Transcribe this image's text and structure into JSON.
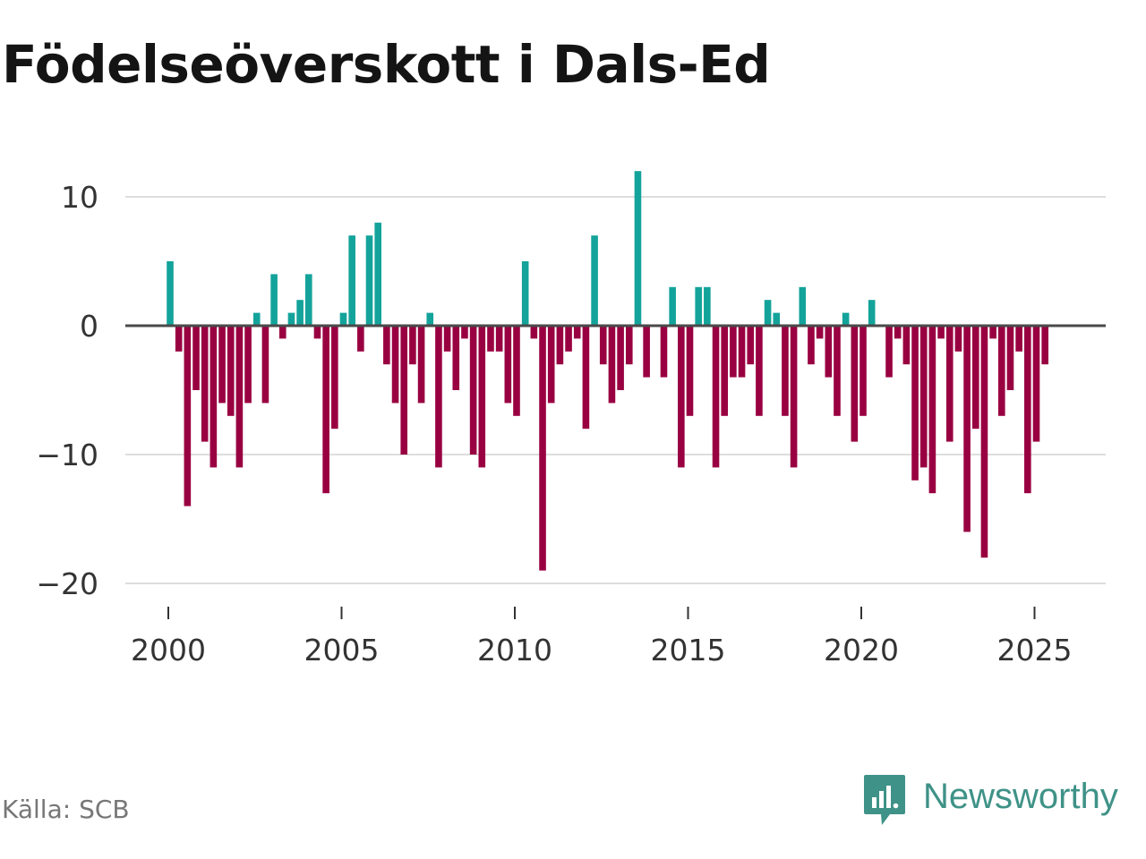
{
  "title": "Födelseöverskott i Dals-Ed",
  "source": "Källa: SCB",
  "brand": "Newsworthy",
  "colors": {
    "positive": "#13a39b",
    "negative": "#990041",
    "gridline": "#dddddd",
    "zero_line": "#4a4a4a",
    "brand": "#3f9287"
  },
  "chart_data": {
    "type": "bar",
    "title": "Födelseöverskott i Dals-Ed",
    "xlabel": "",
    "ylabel": "",
    "ylim": [
      -20,
      12
    ],
    "y_ticks": [
      10,
      0,
      -10,
      -20
    ],
    "y_tick_labels": [
      "10",
      "0",
      "−10",
      "−20"
    ],
    "x_ticks": [
      2000,
      2005,
      2010,
      2015,
      2020,
      2025
    ],
    "x_tick_labels": [
      "2000",
      "2005",
      "2010",
      "2015",
      "2020",
      "2025"
    ],
    "x_start": 2000.0,
    "x_step": 0.25,
    "values": [
      5,
      -2,
      -14,
      -5,
      -9,
      -11,
      -6,
      -7,
      -11,
      -6,
      1,
      -6,
      4,
      -1,
      1,
      2,
      4,
      -1,
      -13,
      -8,
      1,
      7,
      -2,
      7,
      8,
      -3,
      -6,
      -10,
      -3,
      -6,
      1,
      -11,
      -2,
      -5,
      -1,
      -10,
      -11,
      -2,
      -2,
      -6,
      -7,
      5,
      -1,
      -19,
      -6,
      -3,
      -2,
      -1,
      -8,
      7,
      -3,
      -6,
      -5,
      -3,
      12,
      -4,
      0,
      -4,
      3,
      -11,
      -7,
      3,
      3,
      -11,
      -7,
      -4,
      -4,
      -3,
      -7,
      2,
      1,
      -7,
      -11,
      3,
      -3,
      -1,
      -4,
      -7,
      1,
      -9,
      -7,
      2,
      0,
      -4,
      -1,
      -3,
      -12,
      -11,
      -13,
      -1,
      -9,
      -2,
      -16,
      -8,
      -18,
      -1,
      -7,
      -5,
      -2,
      -13,
      -9,
      -3
    ]
  }
}
